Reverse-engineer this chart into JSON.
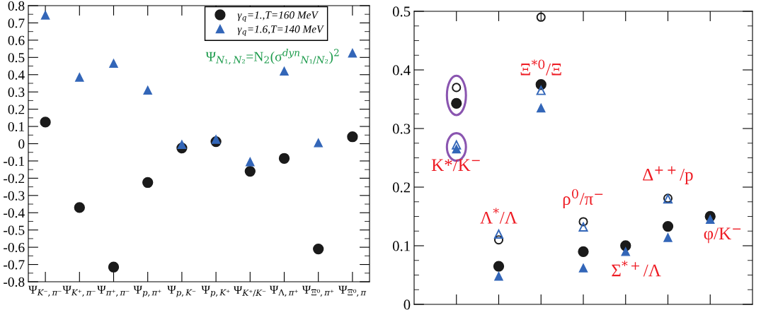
{
  "chart_data": [
    {
      "type": "scatter",
      "categories": [
        "Ψ$_{K⁻,π⁻}$",
        "Ψ$_{K⁺,π⁻}$",
        "Ψ$_{π⁺,π⁻}$",
        "Ψ$_{p,π⁺}$",
        "Ψ$_{p,K⁻}$",
        "Ψ$_{p,K⁺}$",
        "Ψ$_{K⁺/K⁻}$",
        "Ψ$_{Λ,π⁺}$",
        "Ψ$_{Ξ⁰,π⁺}$",
        "Ψ$_{Ξ⁰,π}$"
      ],
      "series": [
        {
          "name": "γ$_{q}$=1.,T=160 MeV",
          "color": "#1a1a1a",
          "marker": "circle",
          "values": [
            0.125,
            -0.37,
            -0.715,
            -0.225,
            -0.025,
            0.012,
            -0.16,
            -0.085,
            -0.61,
            0.04
          ]
        },
        {
          "name": "γ$_{q}$=1.6,T=140 MeV",
          "color": "#3366b8",
          "marker": "triangle",
          "values": [
            0.745,
            0.385,
            0.465,
            0.31,
            -0.005,
            0.025,
            -0.105,
            0.42,
            0.005,
            0.525
          ]
        }
      ],
      "ylim": [
        -0.8,
        0.8
      ],
      "yticks": [
        -0.8,
        -0.7,
        -0.6,
        -0.5,
        -0.4,
        -0.3,
        -0.2,
        -0.1,
        0,
        0.1,
        0.2,
        0.3,
        0.4,
        0.5,
        0.6,
        0.7,
        0.8
      ],
      "annotations": [
        "Ψ$_{N₁,N₂}$=N$_{2}$(σ$^{dyn}$$_{N₁/N₂}$)$^{2}$"
      ],
      "legend": "top right",
      "grid": false
    },
    {
      "type": "scatter",
      "categories": [
        null,
        null,
        null,
        null,
        null,
        null,
        null
      ],
      "series": [
        {
          "color": "#1a1a1a",
          "marker": "circle-open",
          "values": [
            0.37,
            0.11,
            0.49,
            0.141,
            null,
            0.181,
            null
          ]
        },
        {
          "color": "#1a1a1a",
          "marker": "circle",
          "values": [
            0.343,
            0.065,
            0.375,
            0.09,
            0.1,
            0.133,
            0.15
          ]
        },
        {
          "color": "#3366b8",
          "marker": "triangle-open",
          "values": [
            0.272,
            0.12,
            0.365,
            0.132,
            null,
            0.18,
            null
          ]
        },
        {
          "color": "#3366b8",
          "marker": "triangle",
          "values": [
            0.265,
            0.048,
            0.335,
            0.062,
            0.09,
            0.114,
            0.145
          ]
        }
      ],
      "ylim": [
        0,
        0.5
      ],
      "yticks": [
        0,
        0.1,
        0.2,
        0.3,
        0.4,
        0.5
      ],
      "annotations": [
        "K*/K$^{−}$",
        "Λ$^{*}$/Λ",
        "Ξ$^{*0}$/Ξ",
        "ρ$^{0}$/π$^{−}$",
        "Σ$^{*+}$/Λ",
        "Δ$^{++}$/p",
        "φ/K$^{−}$"
      ],
      "legend": false,
      "grid": false
    }
  ]
}
